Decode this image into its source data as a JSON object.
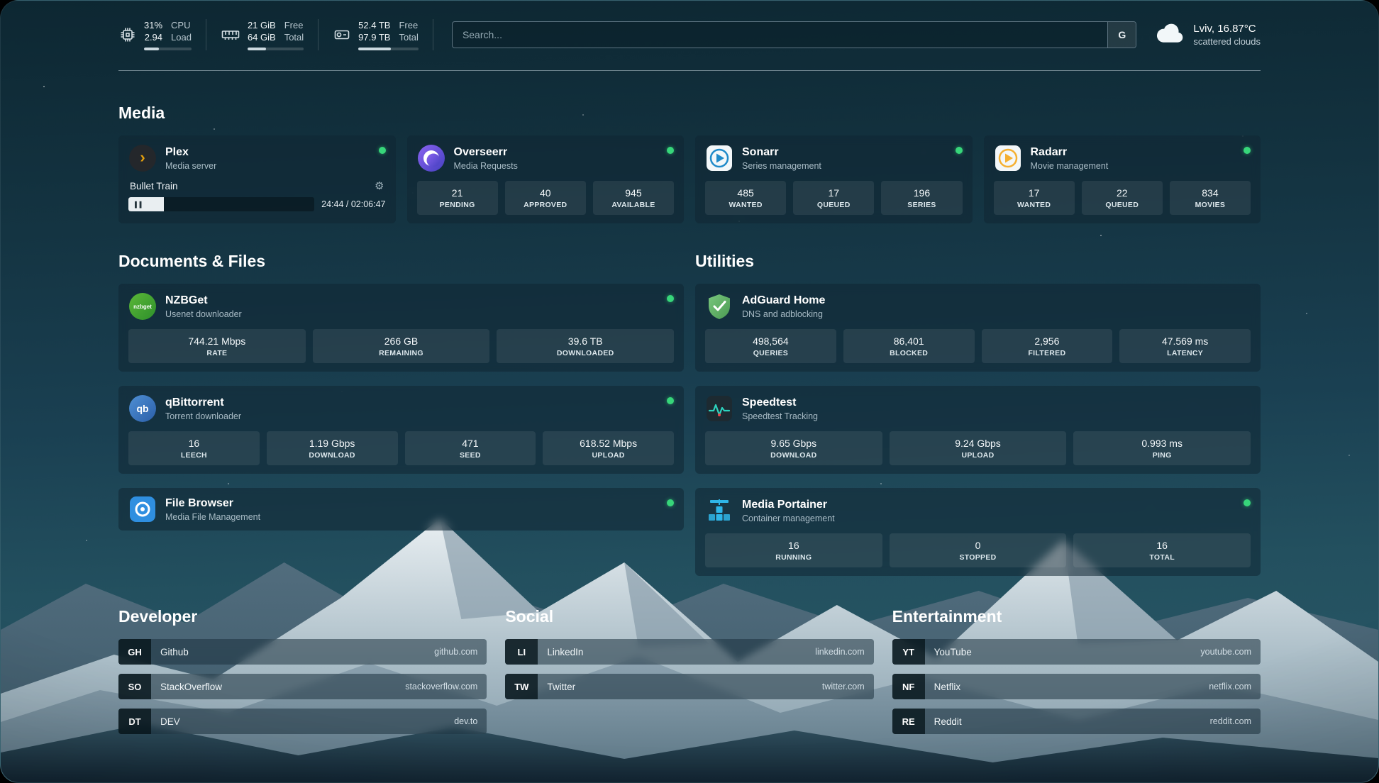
{
  "colors": {
    "status_online": "#37d67a",
    "accent_plex": "#e5a00d",
    "accent_overseerr": "#6d5ce0",
    "accent_sonarr": "#35c5f4",
    "accent_radarr": "#ffc230",
    "accent_nzbget": "#4caf32",
    "accent_qbittorrent": "#3a74c0",
    "accent_filebrowser": "#2f8fe0",
    "accent_adguard": "#67b35c",
    "accent_speedtest": "#2dd4bf",
    "accent_portainer": "#2fb6e8",
    "background_top": "#0d2732",
    "background_mid": "#1a4052"
  },
  "icons": {
    "gear": "⚙",
    "pause": "▌▌",
    "plex_chevron": "›",
    "nzbget_label": "nzbget",
    "qbittorrent_label": "qb"
  },
  "topbar": {
    "cpu": {
      "value1": "31%",
      "value2": "2.94",
      "label1": "CPU",
      "label2": "Load",
      "bar_percent": 31
    },
    "ram": {
      "value1": "21 GiB",
      "value2": "64 GiB",
      "label1": "Free",
      "label2": "Total",
      "bar_percent": 33
    },
    "disk": {
      "value1": "52.4 TB",
      "value2": "97.9 TB",
      "label1": "Free",
      "label2": "Total",
      "bar_percent": 54
    },
    "search": {
      "placeholder": "Search...",
      "button_label": "G"
    },
    "weather": {
      "location": "Lviv, 16.87°C",
      "condition": "scattered clouds"
    }
  },
  "media": {
    "title": "Media",
    "plex": {
      "name": "Plex",
      "subtitle": "Media server",
      "now_playing": "Bullet Train",
      "time": "24:44 / 02:06:47",
      "progress_percent": 19
    },
    "overseerr": {
      "name": "Overseerr",
      "subtitle": "Media Requests",
      "stats": [
        {
          "value": "21",
          "label": "PENDING"
        },
        {
          "value": "40",
          "label": "APPROVED"
        },
        {
          "value": "945",
          "label": "AVAILABLE"
        }
      ]
    },
    "sonarr": {
      "name": "Sonarr",
      "subtitle": "Series management",
      "stats": [
        {
          "value": "485",
          "label": "WANTED"
        },
        {
          "value": "17",
          "label": "QUEUED"
        },
        {
          "value": "196",
          "label": "SERIES"
        }
      ]
    },
    "radarr": {
      "name": "Radarr",
      "subtitle": "Movie management",
      "stats": [
        {
          "value": "17",
          "label": "WANTED"
        },
        {
          "value": "22",
          "label": "QUEUED"
        },
        {
          "value": "834",
          "label": "MOVIES"
        }
      ]
    }
  },
  "documents": {
    "title": "Documents & Files",
    "nzbget": {
      "name": "NZBGet",
      "subtitle": "Usenet downloader",
      "stats": [
        {
          "value": "744.21 Mbps",
          "label": "RATE"
        },
        {
          "value": "266 GB",
          "label": "REMAINING"
        },
        {
          "value": "39.6 TB",
          "label": "DOWNLOADED"
        }
      ]
    },
    "qbittorrent": {
      "name": "qBittorrent",
      "subtitle": "Torrent downloader",
      "stats": [
        {
          "value": "16",
          "label": "LEECH"
        },
        {
          "value": "1.19 Gbps",
          "label": "DOWNLOAD"
        },
        {
          "value": "471",
          "label": "SEED"
        },
        {
          "value": "618.52 Mbps",
          "label": "UPLOAD"
        }
      ]
    },
    "filebrowser": {
      "name": "File Browser",
      "subtitle": "Media File Management"
    }
  },
  "utilities": {
    "title": "Utilities",
    "adguard": {
      "name": "AdGuard Home",
      "subtitle": "DNS and adblocking",
      "stats": [
        {
          "value": "498,564",
          "label": "QUERIES"
        },
        {
          "value": "86,401",
          "label": "BLOCKED"
        },
        {
          "value": "2,956",
          "label": "FILTERED"
        },
        {
          "value": "47.569 ms",
          "label": "LATENCY"
        }
      ]
    },
    "speedtest": {
      "name": "Speedtest",
      "subtitle": "Speedtest Tracking",
      "stats": [
        {
          "value": "9.65 Gbps",
          "label": "DOWNLOAD"
        },
        {
          "value": "9.24 Gbps",
          "label": "UPLOAD"
        },
        {
          "value": "0.993 ms",
          "label": "PING"
        }
      ]
    },
    "portainer": {
      "name": "Media Portainer",
      "subtitle": "Container management",
      "stats": [
        {
          "value": "16",
          "label": "RUNNING"
        },
        {
          "value": "0",
          "label": "STOPPED"
        },
        {
          "value": "16",
          "label": "TOTAL"
        }
      ]
    }
  },
  "bookmarks": {
    "developer": {
      "title": "Developer",
      "items": [
        {
          "abbr": "GH",
          "name": "Github",
          "url": "github.com"
        },
        {
          "abbr": "SO",
          "name": "StackOverflow",
          "url": "stackoverflow.com"
        },
        {
          "abbr": "DT",
          "name": "DEV",
          "url": "dev.to"
        }
      ]
    },
    "social": {
      "title": "Social",
      "items": [
        {
          "abbr": "LI",
          "name": "LinkedIn",
          "url": "linkedin.com"
        },
        {
          "abbr": "TW",
          "name": "Twitter",
          "url": "twitter.com"
        }
      ]
    },
    "entertainment": {
      "title": "Entertainment",
      "items": [
        {
          "abbr": "YT",
          "name": "YouTube",
          "url": "youtube.com"
        },
        {
          "abbr": "NF",
          "name": "Netflix",
          "url": "netflix.com"
        },
        {
          "abbr": "RE",
          "name": "Reddit",
          "url": "reddit.com"
        }
      ]
    }
  }
}
